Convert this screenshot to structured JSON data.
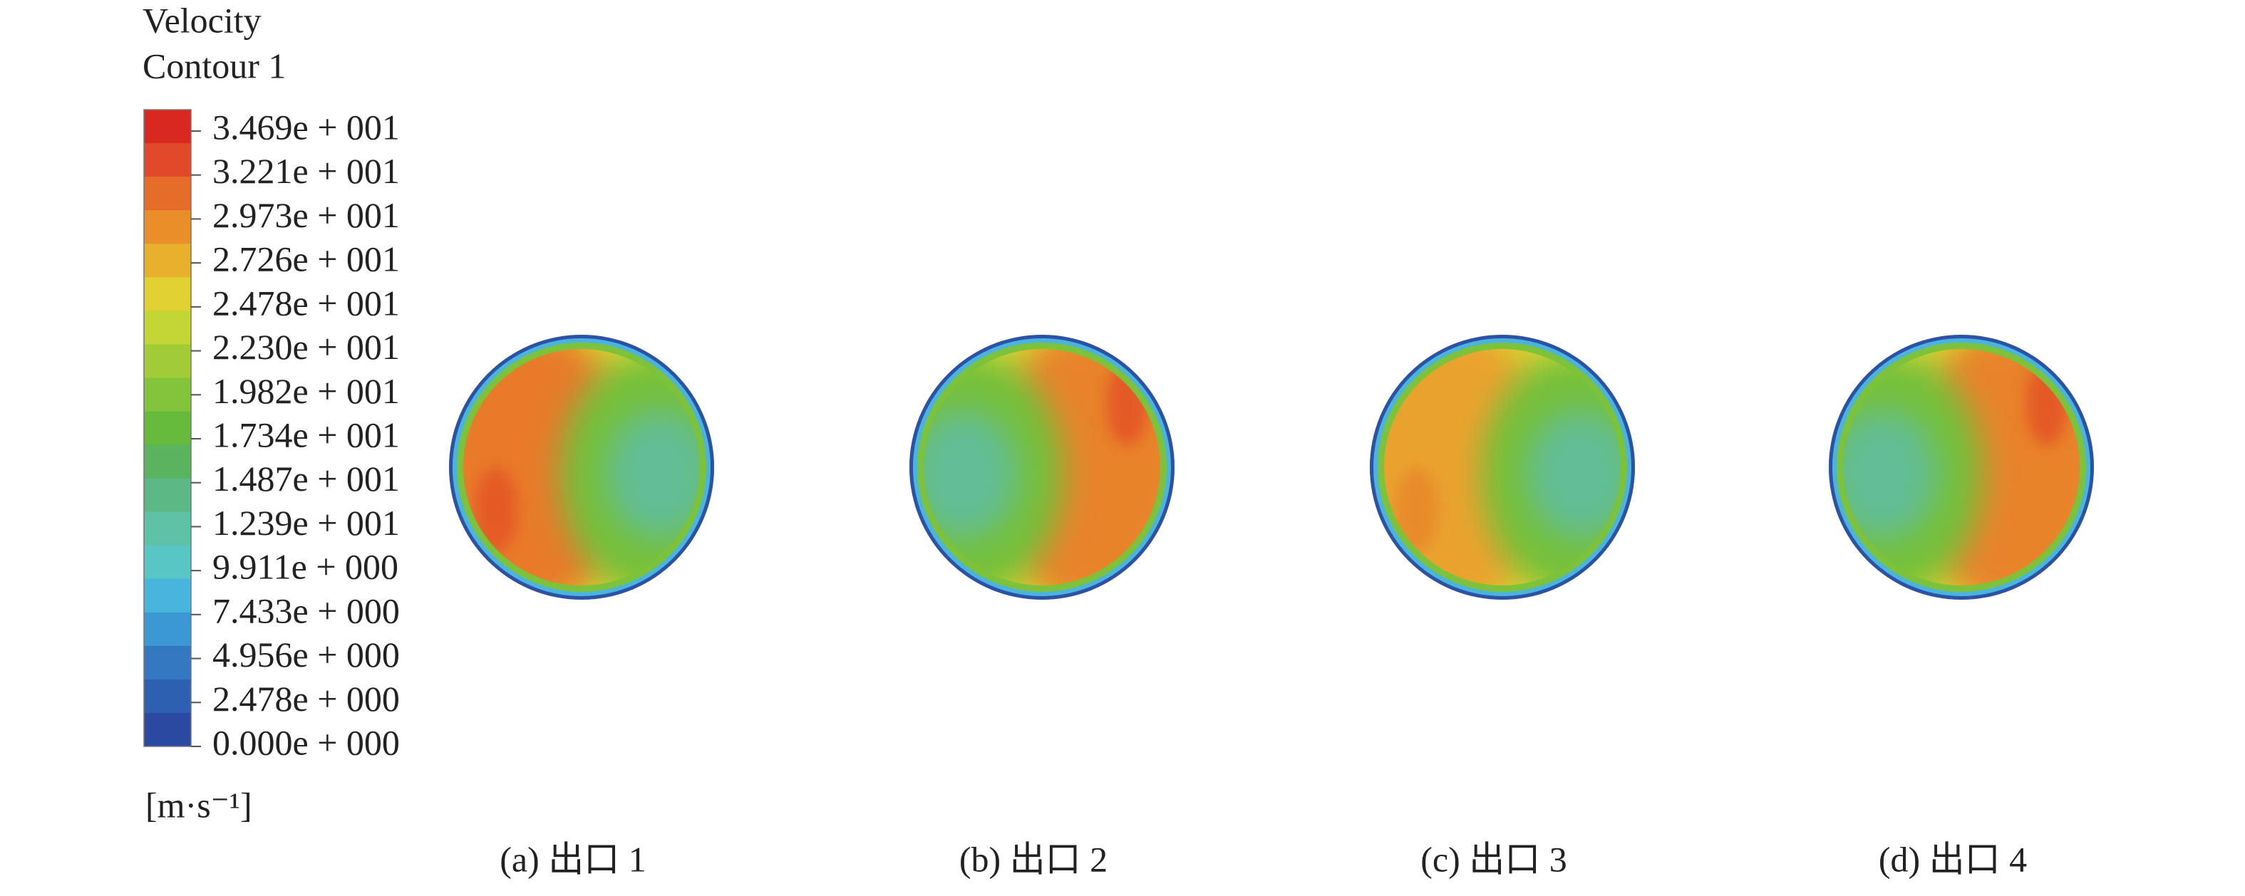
{
  "legend": {
    "title": [
      "Velocity",
      "Contour 1"
    ],
    "labels": [
      "3.469e + 001",
      "3.221e + 001",
      "2.973e + 001",
      "2.726e + 001",
      "2.478e + 001",
      "2.230e + 001",
      "1.982e + 001",
      "1.734e + 001",
      "1.487e + 001",
      "1.239e + 001",
      "9.911e + 000",
      "7.433e + 000",
      "4.956e + 000",
      "2.478e + 000",
      "0.000e + 000"
    ],
    "unit": "[m·s⁻¹]"
  },
  "panels": [
    {
      "caption": "(a) 出口 1"
    },
    {
      "caption": "(b) 出口 2"
    },
    {
      "caption": "(c) 出口 3"
    },
    {
      "caption": "(d) 出口 4"
    }
  ]
}
